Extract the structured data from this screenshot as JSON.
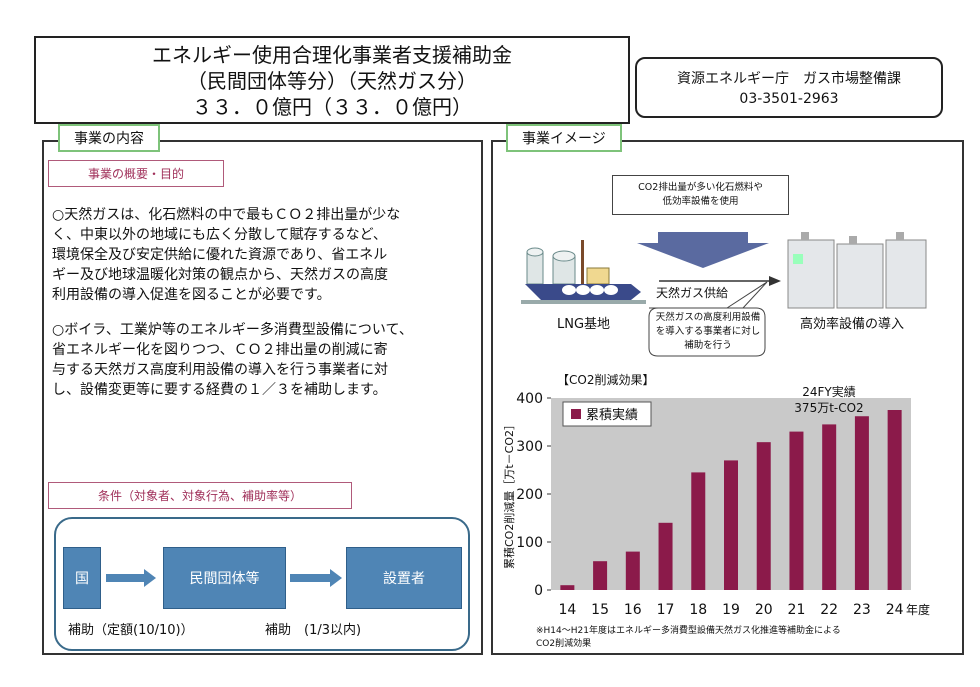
{
  "header": {
    "title_lines": [
      "エネルギー使用合理化事業者支援補助金",
      "（民間団体等分）（天然ガス分）",
      "３３．０億円（３３．０億円）"
    ],
    "contact_org": "資源エネルギー庁　ガス市場整備課",
    "contact_phone": "03-3501-2963"
  },
  "left": {
    "tab": "事業の内容",
    "overview_label": "事業の概要・目的",
    "para1": [
      "○天然ガスは、化石燃料の中で最もＣＯ２排出量が少な",
      "く、中東以外の地域にも広く分散して賦存するなど、",
      "環境保全及び安定供給に優れた資源であり、省エネル",
      "ギー及び地球温暖化対策の観点から、天然ガスの高度",
      "利用設備の導入促進を図ることが必要です。"
    ],
    "para2": [
      "○ボイラ、工業炉等のエネルギー多消費型設備について、",
      "省エネルギー化を図りつつ、ＣＯ２排出量の削減に寄",
      "与する天然ガス高度利用設備の導入を行う事業者に対",
      "し、設備変更等に要する経費の１／３を補助します。"
    ],
    "conditions_label": "条件（対象者、対象行為、補助率等）",
    "flow": {
      "box1": "国",
      "box2": "民間団体等",
      "box3": "設置者",
      "label1": "補助（定額(10/10)）",
      "label2": "補助　(1/3以内)"
    }
  },
  "right": {
    "tab": "事業イメージ",
    "top_callout": [
      "CO2排出量が多い化石燃料や",
      "低効率設備を使用"
    ],
    "supply_label": "天然ガス供給",
    "lng_label": "LNG基地",
    "equip_label": "高効率設備の導入",
    "speech": [
      "天然ガスの高度利用設備",
      "を導入する事業者に対し",
      "補助を行う"
    ],
    "effect_title": "【CO2削減効果】",
    "note": [
      "※H14～H21年度はエネルギー多消費型設備天然ガス化推進等補助金による",
      "CO2削減効果"
    ]
  },
  "chart_data": {
    "type": "bar",
    "categories": [
      "14",
      "15",
      "16",
      "17",
      "18",
      "19",
      "20",
      "21",
      "22",
      "23",
      "24"
    ],
    "series": [
      {
        "name": "累積実績",
        "values": [
          10,
          60,
          80,
          140,
          245,
          270,
          308,
          330,
          345,
          362,
          375
        ]
      }
    ],
    "xlabel": "年度",
    "ylabel": "累積CO2削減量［万t－CO2］",
    "ylim": [
      0,
      400
    ],
    "yticks": [
      0,
      100,
      200,
      300,
      400
    ],
    "annotation": [
      "24FY実績",
      "375万t-CO2"
    ],
    "grid": false,
    "legend": "top-left",
    "colors": {
      "bar": "#8b1a4a",
      "plot_bg": "#c9c9c9"
    }
  },
  "colors": {
    "tab_border": "#7ec37a",
    "flow_blue": "#4f85b5",
    "pink": "#b05a7a"
  }
}
